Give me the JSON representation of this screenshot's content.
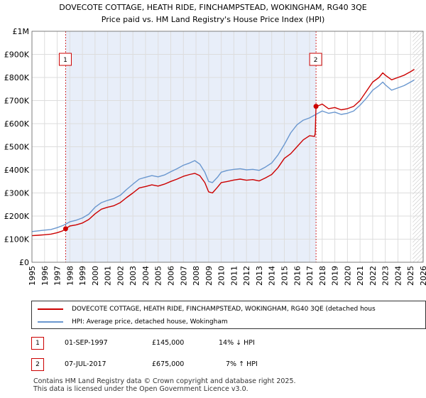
{
  "chart_data": {
    "type": "line",
    "title": "DOVECOTE COTTAGE, HEATH RIDE, FINCHAMPSTEAD, WOKINGHAM, RG40 3QE",
    "subtitle": "Price paid vs. HM Land Registry's House Price Index (HPI)",
    "xlim": [
      1995,
      2026
    ],
    "ylim": [
      0,
      1000000
    ],
    "x_ticks": [
      "1995",
      "1996",
      "1997",
      "1998",
      "1999",
      "2000",
      "2001",
      "2002",
      "2003",
      "2004",
      "2005",
      "2006",
      "2007",
      "2008",
      "2009",
      "2010",
      "2011",
      "2012",
      "2013",
      "2014",
      "2015",
      "2016",
      "2017",
      "2018",
      "2019",
      "2020",
      "2021",
      "2022",
      "2023",
      "2024",
      "2025",
      "2026"
    ],
    "y_ticks": [
      {
        "value": 0,
        "label": "£0"
      },
      {
        "value": 100000,
        "label": "£100K"
      },
      {
        "value": 200000,
        "label": "£200K"
      },
      {
        "value": 300000,
        "label": "£300K"
      },
      {
        "value": 400000,
        "label": "£400K"
      },
      {
        "value": 500000,
        "label": "£500K"
      },
      {
        "value": 600000,
        "label": "£600K"
      },
      {
        "value": 700000,
        "label": "£700K"
      },
      {
        "value": 800000,
        "label": "£800K"
      },
      {
        "value": 900000,
        "label": "£900K"
      },
      {
        "value": 1000000,
        "label": "£1M"
      }
    ],
    "grid": true,
    "series": [
      {
        "name": "DOVECOTE COTTAGE, HEATH RIDE, FINCHAMPSTEAD, WOKINGHAM, RG40 3QE (detached hous",
        "color": "#cc0000",
        "x": [
          1995.0,
          1995.5,
          1996.0,
          1996.5,
          1997.0,
          1997.4,
          1997.67,
          1998.0,
          1998.5,
          1999.0,
          1999.5,
          2000.0,
          2000.5,
          2001.0,
          2001.5,
          2002.0,
          2002.5,
          2003.0,
          2003.5,
          2004.0,
          2004.5,
          2005.0,
          2005.5,
          2006.0,
          2006.5,
          2007.0,
          2007.5,
          2007.9,
          2008.3,
          2008.7,
          2009.0,
          2009.3,
          2009.7,
          2010.0,
          2010.5,
          2011.0,
          2011.5,
          2012.0,
          2012.5,
          2013.0,
          2013.5,
          2014.0,
          2014.5,
          2015.0,
          2015.5,
          2016.0,
          2016.5,
          2017.0,
          2017.4,
          2017.45,
          2017.51,
          2017.8,
          2018.0,
          2018.5,
          2019.0,
          2019.5,
          2020.0,
          2020.5,
          2021.0,
          2021.5,
          2022.0,
          2022.5,
          2022.8,
          2023.0,
          2023.5,
          2024.0,
          2024.5,
          2025.0,
          2025.3
        ],
        "values": [
          115000,
          117000,
          119000,
          122000,
          128000,
          135000,
          145000,
          157000,
          162000,
          170000,
          185000,
          210000,
          230000,
          238000,
          245000,
          258000,
          280000,
          300000,
          322000,
          328000,
          335000,
          330000,
          338000,
          350000,
          360000,
          372000,
          380000,
          385000,
          375000,
          345000,
          305000,
          300000,
          325000,
          345000,
          350000,
          356000,
          360000,
          355000,
          358000,
          352000,
          365000,
          380000,
          410000,
          450000,
          470000,
          500000,
          530000,
          548000,
          545000,
          560000,
          675000,
          680000,
          685000,
          665000,
          670000,
          660000,
          665000,
          675000,
          700000,
          740000,
          780000,
          800000,
          820000,
          810000,
          790000,
          800000,
          810000,
          825000,
          835000
        ]
      },
      {
        "name": "HPI: Average price, detached house, Wokingham",
        "color": "#6a97cf",
        "x": [
          1995.0,
          1995.5,
          1996.0,
          1996.5,
          1997.0,
          1997.5,
          1998.0,
          1998.5,
          1999.0,
          1999.5,
          2000.0,
          2000.5,
          2001.0,
          2001.5,
          2002.0,
          2002.5,
          2003.0,
          2003.5,
          2004.0,
          2004.5,
          2005.0,
          2005.5,
          2006.0,
          2006.5,
          2007.0,
          2007.5,
          2007.9,
          2008.3,
          2008.7,
          2009.0,
          2009.3,
          2009.7,
          2010.0,
          2010.5,
          2011.0,
          2011.5,
          2012.0,
          2012.5,
          2013.0,
          2013.5,
          2014.0,
          2014.5,
          2015.0,
          2015.5,
          2016.0,
          2016.5,
          2017.0,
          2017.5,
          2018.0,
          2018.5,
          2019.0,
          2019.5,
          2020.0,
          2020.5,
          2021.0,
          2021.5,
          2022.0,
          2022.5,
          2022.8,
          2023.0,
          2023.5,
          2024.0,
          2024.5,
          2025.0,
          2025.3
        ],
        "values": [
          133000,
          136000,
          139000,
          142000,
          150000,
          160000,
          175000,
          182000,
          192000,
          208000,
          238000,
          258000,
          268000,
          276000,
          290000,
          315000,
          338000,
          360000,
          368000,
          375000,
          370000,
          378000,
          392000,
          405000,
          420000,
          430000,
          440000,
          425000,
          390000,
          350000,
          345000,
          368000,
          390000,
          398000,
          402000,
          405000,
          400000,
          402000,
          398000,
          412000,
          430000,
          465000,
          510000,
          560000,
          595000,
          615000,
          625000,
          640000,
          655000,
          645000,
          650000,
          640000,
          645000,
          655000,
          680000,
          710000,
          745000,
          765000,
          780000,
          768000,
          745000,
          755000,
          765000,
          780000,
          790000
        ]
      }
    ],
    "sales": [
      {
        "id": "1",
        "x": 1997.67,
        "value": 145000,
        "date": "01-SEP-1997",
        "price": "£145,000",
        "hpi_change": "14% ↓ HPI"
      },
      {
        "id": "2",
        "x": 2017.51,
        "value": 675000,
        "date": "07-JUL-2017",
        "price": "£675,000",
        "hpi_change": "7% ↑ HPI"
      }
    ],
    "shade_start": 1997.67,
    "shade_end": 2017.51,
    "hatch_start": 2025.17,
    "legend_position": "bottom"
  },
  "footer": {
    "line1": "Contains HM Land Registry data © Crown copyright and database right 2025.",
    "line2": "This data is licensed under the Open Government Licence v3.0."
  }
}
